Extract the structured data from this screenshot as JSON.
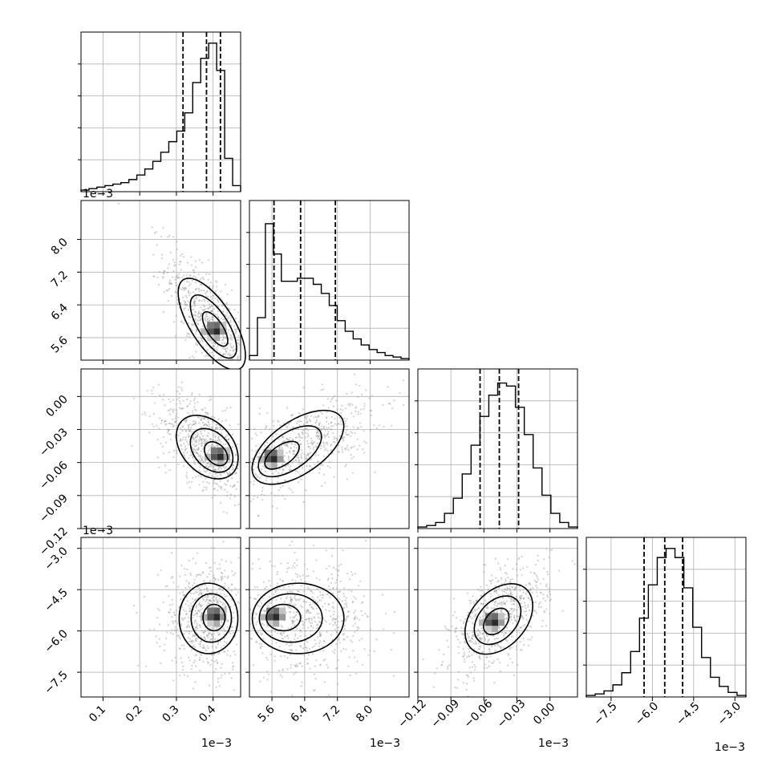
{
  "chart_data": {
    "type": "corner",
    "description_free": true,
    "dimensions": 4,
    "params": [
      {
        "range": [
          0.04,
          0.475
        ],
        "ticks": [
          0.1,
          0.2,
          0.3,
          0.4
        ],
        "tick_labels": [
          "0.1",
          "0.2",
          "0.3",
          "0.4"
        ],
        "offset_label": "1e−3",
        "quantiles": [
          0.318,
          0.382,
          0.42
        ],
        "hist": [
          1,
          2,
          3,
          4,
          5,
          6,
          8,
          11,
          15,
          20,
          26,
          33,
          40,
          52,
          72,
          88,
          98,
          80,
          22,
          4
        ],
        "peak_ref": 100
      },
      {
        "range": [
          5.05,
          8.95
        ],
        "ticks": [
          5.6,
          6.4,
          7.2,
          8.0
        ],
        "tick_labels": [
          "5.6",
          "6.4",
          "7.2",
          "8.0"
        ],
        "offset_label": "1e−3",
        "quantiles": [
          5.65,
          6.3,
          7.15
        ],
        "hist": [
          3,
          28,
          90,
          70,
          52,
          52,
          54,
          54,
          50,
          44,
          36,
          26,
          19,
          14,
          10,
          7,
          5,
          3,
          2,
          1
        ],
        "peak_ref": 100
      },
      {
        "range": [
          -0.12,
          0.025
        ],
        "ticks": [
          -0.12,
          -0.09,
          -0.06,
          -0.03,
          0.0
        ],
        "tick_labels": [
          "−0.12",
          "−0.09",
          "−0.06",
          "−0.03",
          "0.00"
        ],
        "offset_label": "1e−3",
        "quantiles": [
          -0.0635,
          -0.046,
          -0.0285
        ],
        "hist": [
          1,
          2,
          4,
          10,
          20,
          36,
          55,
          74,
          88,
          96,
          94,
          80,
          62,
          40,
          22,
          10,
          4,
          1
        ],
        "peak_ref": 100
      },
      {
        "range": [
          -8.4,
          -2.6
        ],
        "ticks": [
          -7.5,
          -6.0,
          -4.5,
          -3.0
        ],
        "tick_labels": [
          "−7.5",
          "−6.0",
          "−4.5",
          "−3.0"
        ],
        "offset_label": "1e−3",
        "quantiles": [
          -6.3,
          -5.55,
          -4.9
        ],
        "hist": [
          1,
          2,
          4,
          8,
          16,
          30,
          52,
          74,
          92,
          98,
          92,
          72,
          46,
          26,
          13,
          7,
          3,
          1
        ],
        "peak_ref": 100
      }
    ],
    "pairs": [
      {
        "row": 1,
        "col": 0,
        "center": [
          0.395,
          5.95
        ],
        "spread": [
          0.05,
          0.7
        ],
        "corr": -0.75,
        "mode": [
          0.41,
          5.75
        ]
      },
      {
        "row": 2,
        "col": 0,
        "center": [
          0.38,
          -0.045
        ],
        "spread": [
          0.05,
          0.018
        ],
        "corr": -0.55,
        "mode": [
          0.42,
          -0.055
        ]
      },
      {
        "row": 2,
        "col": 1,
        "center": [
          6.3,
          -0.045
        ],
        "spread": [
          0.7,
          0.018
        ],
        "corr": 0.6,
        "mode": [
          5.65,
          -0.057
        ]
      },
      {
        "row": 3,
        "col": 0,
        "center": [
          0.385,
          -5.55
        ],
        "spread": [
          0.05,
          0.8
        ],
        "corr": 0.0,
        "mode": [
          0.41,
          -5.5
        ]
      },
      {
        "row": 3,
        "col": 1,
        "center": [
          6.3,
          -5.55
        ],
        "spread": [
          0.7,
          0.8
        ],
        "corr": 0.0,
        "mode": [
          5.7,
          -5.5
        ]
      },
      {
        "row": 3,
        "col": 2,
        "center": [
          -0.046,
          -5.55
        ],
        "spread": [
          0.018,
          0.8
        ],
        "corr": 0.55,
        "mode": [
          -0.05,
          -5.7
        ]
      }
    ],
    "grid": true
  }
}
